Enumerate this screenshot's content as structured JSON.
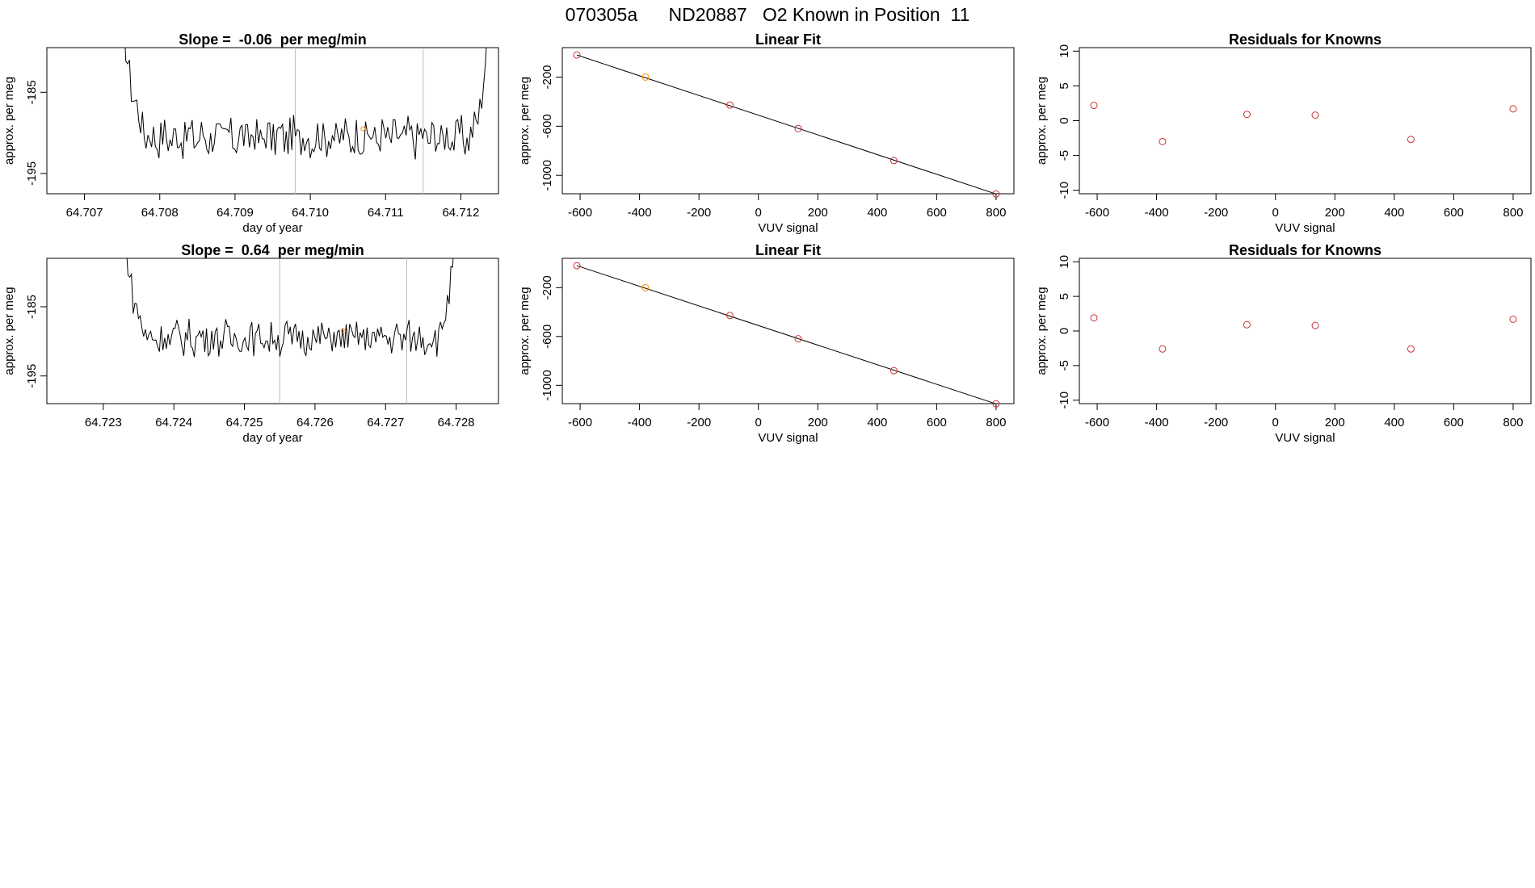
{
  "page": {
    "title": "070305a      ND20887   O2 Known in Position  11"
  },
  "colors": {
    "axis": "#000000",
    "trace": "#000000",
    "vline": "#bebebe",
    "points": "#cd3333",
    "highlight": "#ff8c00",
    "fitline": "#000000"
  },
  "chart_data": [
    {
      "type": "line",
      "title": "Slope =  -0.06  per meg/min",
      "xlabel": "day of year",
      "ylabel": "approx. per meg",
      "xlim": [
        64.7065,
        64.7125
      ],
      "ylim": [
        -197.5,
        -179.5
      ],
      "xticks": [
        64.707,
        64.708,
        64.709,
        64.71,
        64.711,
        64.712
      ],
      "xtick_labels": [
        "64.707",
        "64.708",
        "64.709",
        "64.710",
        "64.711",
        "64.712"
      ],
      "yticks": [
        -185,
        -195
      ],
      "ytick_labels": [
        "-185",
        "-195"
      ],
      "vlines": [
        64.7098,
        64.7115
      ],
      "trace_start": 64.7075,
      "trace_end": 64.7124,
      "n_points": 200,
      "trace_level": -190.5,
      "trace_amp": 2.3,
      "marker": {
        "x": 64.7107,
        "y": -189.5
      }
    },
    {
      "type": "scatter",
      "title": "Linear Fit",
      "xlabel": "VUV signal",
      "ylabel": "approx. per meg",
      "xlim": [
        -660,
        860
      ],
      "ylim": [
        -1150,
        40
      ],
      "xticks": [
        -600,
        -400,
        -200,
        0,
        200,
        400,
        600,
        800
      ],
      "xtick_labels": [
        "-600",
        "-400",
        "-200",
        "0",
        "200",
        "400",
        "600",
        "800"
      ],
      "yticks": [
        -200,
        -600,
        -1000
      ],
      "ytick_labels": [
        "-200",
        "-600",
        "-1000"
      ],
      "x": [
        -611,
        -380,
        -96,
        134,
        456,
        800
      ],
      "y": [
        -20,
        -200,
        -428,
        -619,
        -880,
        -1152
      ],
      "highlight_index": 1,
      "fit": {
        "x": [
          -611,
          800
        ],
        "y": [
          -20,
          -1152
        ]
      }
    },
    {
      "type": "scatter",
      "title": "Residuals for Knowns",
      "xlabel": "VUV signal",
      "ylabel": "approx. per meg",
      "xlim": [
        -660,
        860
      ],
      "ylim": [
        -10.5,
        10.5
      ],
      "xticks": [
        -600,
        -400,
        -200,
        0,
        200,
        400,
        600,
        800
      ],
      "xtick_labels": [
        "-600",
        "-400",
        "-200",
        "0",
        "200",
        "400",
        "600",
        "800"
      ],
      "yticks": [
        10,
        5,
        0,
        -5,
        -10
      ],
      "ytick_labels": [
        "10",
        "5",
        "0",
        "-5",
        "-10"
      ],
      "x": [
        -611,
        -380,
        -96,
        134,
        456,
        800
      ],
      "y": [
        2.2,
        -3.0,
        0.9,
        0.8,
        -2.7,
        1.7
      ]
    },
    {
      "type": "line",
      "title": "Slope =  0.64  per meg/min",
      "xlabel": "day of year",
      "ylabel": "approx. per meg",
      "xlim": [
        64.7222,
        64.7286
      ],
      "ylim": [
        -199,
        -178
      ],
      "xticks": [
        64.723,
        64.724,
        64.725,
        64.726,
        64.727,
        64.728
      ],
      "xtick_labels": [
        "64.723",
        "64.724",
        "64.725",
        "64.726",
        "64.727",
        "64.728"
      ],
      "yticks": [
        -185,
        -195
      ],
      "ytick_labels": [
        "-185",
        "-195"
      ],
      "vlines": [
        64.7255,
        64.7273
      ],
      "trace_start": 64.7233,
      "trace_end": 64.728,
      "n_points": 190,
      "trace_level": -189.5,
      "trace_amp": 2.3,
      "marker": {
        "x": 64.7264,
        "y": -188.5
      }
    },
    {
      "type": "scatter",
      "title": "Linear Fit",
      "xlabel": "VUV signal",
      "ylabel": "approx. per meg",
      "xlim": [
        -660,
        860
      ],
      "ylim": [
        -1150,
        40
      ],
      "xticks": [
        -600,
        -400,
        -200,
        0,
        200,
        400,
        600,
        800
      ],
      "xtick_labels": [
        "-600",
        "-400",
        "-200",
        "0",
        "200",
        "400",
        "600",
        "800"
      ],
      "yticks": [
        -200,
        -600,
        -1000
      ],
      "ytick_labels": [
        "-200",
        "-600",
        "-1000"
      ],
      "x": [
        -611,
        -380,
        -96,
        134,
        456,
        800
      ],
      "y": [
        -20,
        -200,
        -428,
        -619,
        -880,
        -1152
      ],
      "highlight_index": 1,
      "fit": {
        "x": [
          -611,
          800
        ],
        "y": [
          -20,
          -1152
        ]
      }
    },
    {
      "type": "scatter",
      "title": "Residuals for Knowns",
      "xlabel": "VUV signal",
      "ylabel": "approx. per meg",
      "xlim": [
        -660,
        860
      ],
      "ylim": [
        -10.5,
        10.5
      ],
      "xticks": [
        -600,
        -400,
        -200,
        0,
        200,
        400,
        600,
        800
      ],
      "xtick_labels": [
        "-600",
        "-400",
        "-200",
        "0",
        "200",
        "400",
        "600",
        "800"
      ],
      "yticks": [
        10,
        5,
        0,
        -5,
        -10
      ],
      "ytick_labels": [
        "10",
        "5",
        "0",
        "-5",
        "-10"
      ],
      "x": [
        -611,
        -380,
        -96,
        134,
        456,
        800
      ],
      "y": [
        1.9,
        -2.6,
        0.9,
        0.8,
        -2.6,
        1.7
      ]
    }
  ]
}
